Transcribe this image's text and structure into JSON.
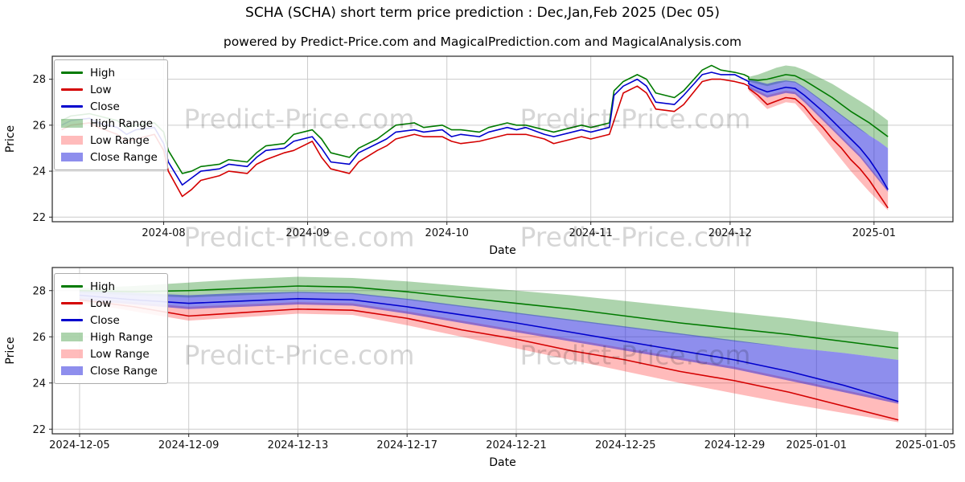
{
  "title": "SCHA (SCHA) short term price prediction : Dec,Jan,Feb 2025 (Dec 05)",
  "subtitle": "powered by Predict-Price.com and MagicalPrediction.com and MagicalAnalysis.com",
  "watermark_text": "Predict-Price.com",
  "colors": {
    "high_line": "#007a00",
    "low_line": "#d40000",
    "close_line": "#0000cd",
    "high_range_fill": "rgba(0,120,0,0.32)",
    "low_range_fill": "rgba(255,50,50,0.33)",
    "close_range_fill": "rgba(30,30,220,0.5)",
    "grid": "#cccccc",
    "axis": "#262626",
    "watermark": "rgba(0,0,0,0.16)"
  },
  "chart_data": [
    {
      "type": "line",
      "name": "history-and-forecast",
      "xlabel": "Date",
      "ylabel": "Price",
      "xdomain": [
        "2024-07-08",
        "2025-01-18"
      ],
      "ylim": [
        21.8,
        29.0
      ],
      "yticks": [
        22,
        24,
        26,
        28
      ],
      "xticks": [
        {
          "date": "2024-08-01",
          "label": "2024-08"
        },
        {
          "date": "2024-09-01",
          "label": "2024-09"
        },
        {
          "date": "2024-10-01",
          "label": "2024-10"
        },
        {
          "date": "2024-11-01",
          "label": "2024-11"
        },
        {
          "date": "2024-12-01",
          "label": "2024-12"
        },
        {
          "date": "2025-01-01",
          "label": "2025-01"
        }
      ],
      "legend": [
        {
          "label": "High",
          "swatch": "line",
          "color_key": "high_line"
        },
        {
          "label": "Low",
          "swatch": "line",
          "color_key": "low_line"
        },
        {
          "label": "Close",
          "swatch": "line",
          "color_key": "close_line"
        },
        {
          "label": "High Range",
          "swatch": "band",
          "color_key": "high_range_fill"
        },
        {
          "label": "Low Range",
          "swatch": "band",
          "color_key": "low_range_fill"
        },
        {
          "label": "Close Range",
          "swatch": "band",
          "color_key": "close_range_fill"
        }
      ],
      "history": {
        "dates": [
          "2024-07-10",
          "2024-07-12",
          "2024-07-16",
          "2024-07-18",
          "2024-07-22",
          "2024-07-24",
          "2024-07-26",
          "2024-07-30",
          "2024-08-01",
          "2024-08-02",
          "2024-08-05",
          "2024-08-07",
          "2024-08-09",
          "2024-08-13",
          "2024-08-15",
          "2024-08-19",
          "2024-08-21",
          "2024-08-23",
          "2024-08-27",
          "2024-08-29",
          "2024-09-02",
          "2024-09-04",
          "2024-09-06",
          "2024-09-10",
          "2024-09-12",
          "2024-09-16",
          "2024-09-18",
          "2024-09-20",
          "2024-09-24",
          "2024-09-26",
          "2024-09-30",
          "2024-10-02",
          "2024-10-04",
          "2024-10-08",
          "2024-10-10",
          "2024-10-14",
          "2024-10-16",
          "2024-10-18",
          "2024-10-22",
          "2024-10-24",
          "2024-10-28",
          "2024-10-30",
          "2024-11-01",
          "2024-11-05",
          "2024-11-06",
          "2024-11-08",
          "2024-11-11",
          "2024-11-13",
          "2024-11-15",
          "2024-11-19",
          "2024-11-21",
          "2024-11-25",
          "2024-11-27",
          "2024-11-29",
          "2024-12-02",
          "2024-12-04",
          "2024-12-05"
        ],
        "high": [
          26.2,
          26.4,
          26.5,
          26.4,
          26.2,
          25.9,
          26.0,
          26.1,
          25.7,
          24.9,
          23.9,
          24.0,
          24.2,
          24.3,
          24.5,
          24.4,
          24.8,
          25.1,
          25.2,
          25.6,
          25.8,
          25.4,
          24.8,
          24.6,
          25.0,
          25.4,
          25.7,
          26.0,
          26.1,
          25.9,
          26.0,
          25.8,
          25.8,
          25.7,
          25.9,
          26.1,
          26.0,
          26.0,
          25.8,
          25.7,
          25.9,
          26.0,
          25.9,
          26.1,
          27.5,
          27.9,
          28.2,
          28.0,
          27.4,
          27.2,
          27.5,
          28.4,
          28.6,
          28.4,
          28.3,
          28.2,
          28.1
        ],
        "low": [
          25.8,
          26.0,
          26.1,
          25.9,
          25.6,
          25.3,
          25.4,
          25.6,
          24.9,
          24.0,
          22.9,
          23.2,
          23.6,
          23.8,
          24.0,
          23.9,
          24.3,
          24.5,
          24.8,
          24.9,
          25.3,
          24.6,
          24.1,
          23.9,
          24.4,
          24.9,
          25.1,
          25.4,
          25.6,
          25.5,
          25.5,
          25.3,
          25.2,
          25.3,
          25.4,
          25.6,
          25.6,
          25.6,
          25.4,
          25.2,
          25.4,
          25.5,
          25.4,
          25.6,
          26.2,
          27.4,
          27.7,
          27.4,
          26.7,
          26.6,
          26.9,
          27.9,
          28.0,
          28.0,
          27.9,
          27.8,
          27.7
        ],
        "close": [
          26.0,
          26.2,
          26.3,
          26.1,
          25.9,
          25.6,
          25.8,
          25.9,
          25.2,
          24.4,
          23.4,
          23.7,
          24.0,
          24.1,
          24.3,
          24.2,
          24.6,
          24.9,
          25.0,
          25.3,
          25.5,
          25.0,
          24.4,
          24.3,
          24.8,
          25.2,
          25.4,
          25.7,
          25.8,
          25.7,
          25.8,
          25.5,
          25.6,
          25.5,
          25.7,
          25.9,
          25.8,
          25.9,
          25.6,
          25.5,
          25.7,
          25.8,
          25.7,
          25.9,
          27.3,
          27.7,
          28.0,
          27.7,
          27.0,
          26.9,
          27.3,
          28.2,
          28.3,
          28.2,
          28.2,
          28.0,
          27.9
        ]
      },
      "forecast": {
        "dates": [
          "2024-12-05",
          "2024-12-07",
          "2024-12-09",
          "2024-12-11",
          "2024-12-13",
          "2024-12-15",
          "2024-12-17",
          "2024-12-19",
          "2024-12-21",
          "2024-12-23",
          "2024-12-25",
          "2024-12-27",
          "2024-12-29",
          "2024-12-31",
          "2025-01-02",
          "2025-01-04"
        ],
        "high": [
          28.0,
          27.95,
          28.0,
          28.1,
          28.2,
          28.15,
          27.95,
          27.7,
          27.45,
          27.2,
          26.9,
          26.6,
          26.35,
          26.1,
          25.8,
          25.5
        ],
        "low": [
          27.6,
          27.3,
          26.9,
          27.05,
          27.2,
          27.15,
          26.8,
          26.3,
          25.9,
          25.4,
          25.0,
          24.5,
          24.1,
          23.6,
          23.0,
          22.4
        ],
        "close": [
          27.8,
          27.6,
          27.45,
          27.55,
          27.65,
          27.6,
          27.3,
          26.95,
          26.6,
          26.2,
          25.8,
          25.4,
          25.0,
          24.5,
          23.9,
          23.2
        ],
        "high_range": {
          "upper": [
            28.1,
            28.2,
            28.35,
            28.5,
            28.6,
            28.55,
            28.4,
            28.2,
            28.0,
            27.8,
            27.55,
            27.3,
            27.05,
            26.8,
            26.5,
            26.2
          ],
          "lower": [
            27.9,
            27.8,
            27.7,
            27.8,
            27.9,
            27.85,
            27.6,
            27.3,
            27.0,
            26.7,
            26.4,
            26.1,
            25.8,
            25.55,
            25.3,
            25.0
          ]
        },
        "low_range": {
          "upper": [
            27.7,
            27.5,
            27.3,
            27.4,
            27.5,
            27.45,
            27.1,
            26.7,
            26.3,
            25.9,
            25.5,
            25.1,
            24.7,
            24.2,
            23.7,
            23.2
          ],
          "lower": [
            27.5,
            27.1,
            26.7,
            26.85,
            27.0,
            26.95,
            26.5,
            26.0,
            25.5,
            25.0,
            24.5,
            24.0,
            23.55,
            23.1,
            22.7,
            22.3
          ]
        },
        "close_range": {
          "upper": [
            28.0,
            27.9,
            27.8,
            27.9,
            27.95,
            27.9,
            27.65,
            27.35,
            27.05,
            26.75,
            26.45,
            26.15,
            25.85,
            25.55,
            25.3,
            25.0
          ],
          "lower": [
            27.6,
            27.4,
            27.2,
            27.3,
            27.4,
            27.35,
            27.0,
            26.6,
            26.2,
            25.8,
            25.4,
            25.0,
            24.6,
            24.1,
            23.6,
            23.1
          ]
        }
      }
    },
    {
      "type": "line",
      "name": "forecast-detail",
      "xlabel": "Date",
      "ylabel": "Price",
      "xdomain": [
        "2024-12-04",
        "2025-01-06"
      ],
      "ylim": [
        21.8,
        29.0
      ],
      "yticks": [
        22,
        24,
        26,
        28
      ],
      "xticks": [
        {
          "date": "2024-12-05",
          "label": "2024-12-05"
        },
        {
          "date": "2024-12-09",
          "label": "2024-12-09"
        },
        {
          "date": "2024-12-13",
          "label": "2024-12-13"
        },
        {
          "date": "2024-12-17",
          "label": "2024-12-17"
        },
        {
          "date": "2024-12-21",
          "label": "2024-12-21"
        },
        {
          "date": "2024-12-25",
          "label": "2024-12-25"
        },
        {
          "date": "2024-12-29",
          "label": "2024-12-29"
        },
        {
          "date": "2025-01-01",
          "label": "2025-01-01"
        },
        {
          "date": "2025-01-05",
          "label": "2025-01-05"
        }
      ],
      "legend": [
        {
          "label": "High",
          "swatch": "line",
          "color_key": "high_line"
        },
        {
          "label": "Low",
          "swatch": "line",
          "color_key": "low_line"
        },
        {
          "label": "Close",
          "swatch": "line",
          "color_key": "close_line"
        },
        {
          "label": "High Range",
          "swatch": "band",
          "color_key": "high_range_fill"
        },
        {
          "label": "Low Range",
          "swatch": "band",
          "color_key": "low_range_fill"
        },
        {
          "label": "Close Range",
          "swatch": "band",
          "color_key": "close_range_fill"
        }
      ],
      "forecast": {
        "dates": [
          "2024-12-05",
          "2024-12-07",
          "2024-12-09",
          "2024-12-11",
          "2024-12-13",
          "2024-12-15",
          "2024-12-17",
          "2024-12-19",
          "2024-12-21",
          "2024-12-23",
          "2024-12-25",
          "2024-12-27",
          "2024-12-29",
          "2024-12-31",
          "2025-01-02",
          "2025-01-04"
        ],
        "high": [
          28.0,
          27.95,
          28.0,
          28.1,
          28.2,
          28.15,
          27.95,
          27.7,
          27.45,
          27.2,
          26.9,
          26.6,
          26.35,
          26.1,
          25.8,
          25.5
        ],
        "low": [
          27.6,
          27.3,
          26.9,
          27.05,
          27.2,
          27.15,
          26.8,
          26.3,
          25.9,
          25.4,
          25.0,
          24.5,
          24.1,
          23.6,
          23.0,
          22.4
        ],
        "close": [
          27.8,
          27.6,
          27.45,
          27.55,
          27.65,
          27.6,
          27.3,
          26.95,
          26.6,
          26.2,
          25.8,
          25.4,
          25.0,
          24.5,
          23.9,
          23.2
        ],
        "high_range": {
          "upper": [
            28.1,
            28.2,
            28.35,
            28.5,
            28.6,
            28.55,
            28.4,
            28.2,
            28.0,
            27.8,
            27.55,
            27.3,
            27.05,
            26.8,
            26.5,
            26.2
          ],
          "lower": [
            27.9,
            27.8,
            27.7,
            27.8,
            27.9,
            27.85,
            27.6,
            27.3,
            27.0,
            26.7,
            26.4,
            26.1,
            25.8,
            25.55,
            25.3,
            25.0
          ]
        },
        "low_range": {
          "upper": [
            27.7,
            27.5,
            27.3,
            27.4,
            27.5,
            27.45,
            27.1,
            26.7,
            26.3,
            25.9,
            25.5,
            25.1,
            24.7,
            24.2,
            23.7,
            23.2
          ],
          "lower": [
            27.5,
            27.1,
            26.7,
            26.85,
            27.0,
            26.95,
            26.5,
            26.0,
            25.5,
            25.0,
            24.5,
            24.0,
            23.55,
            23.1,
            22.7,
            22.3
          ]
        },
        "close_range": {
          "upper": [
            28.0,
            27.9,
            27.8,
            27.9,
            27.95,
            27.9,
            27.65,
            27.35,
            27.05,
            26.75,
            26.45,
            26.15,
            25.85,
            25.55,
            25.3,
            25.0
          ],
          "lower": [
            27.6,
            27.4,
            27.2,
            27.3,
            27.4,
            27.35,
            27.0,
            26.6,
            26.2,
            25.8,
            25.4,
            25.0,
            24.6,
            24.1,
            23.6,
            23.1
          ]
        }
      }
    }
  ]
}
